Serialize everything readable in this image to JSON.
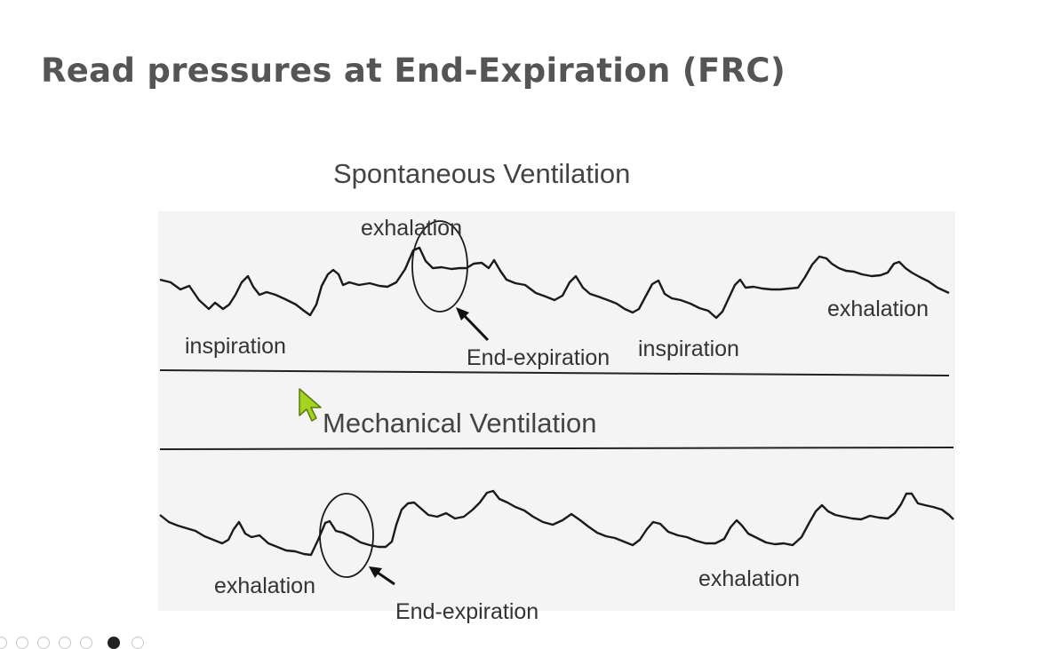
{
  "slide": {
    "title": "Read pressures at End-Expiration (FRC)",
    "spontaneous_heading": "Spontaneous Ventilation",
    "mechanical_heading": "Mechanical Ventilation"
  },
  "labels": {
    "top_exhalation_1": "exhalation",
    "top_exhalation_2": "exhalation",
    "top_inspiration_1": "inspiration",
    "top_inspiration_2": "inspiration",
    "top_end_expiration": "End-expiration",
    "bottom_exhalation_1": "exhalation",
    "bottom_exhalation_2": "exhalation",
    "bottom_end_expiration": "End-expiration"
  },
  "colors": {
    "title": "#555555",
    "trace": "#1a1a1a",
    "figure_bg": "#f4f4f4",
    "cursor": "#a4d321"
  },
  "icons": {
    "cursor": "arrow-cursor-icon",
    "toolbar": [
      "previous-icon",
      "pen-icon",
      "slides-icon",
      "zoom-icon",
      "subtitles-icon",
      "camera-icon",
      "more-icon"
    ]
  }
}
